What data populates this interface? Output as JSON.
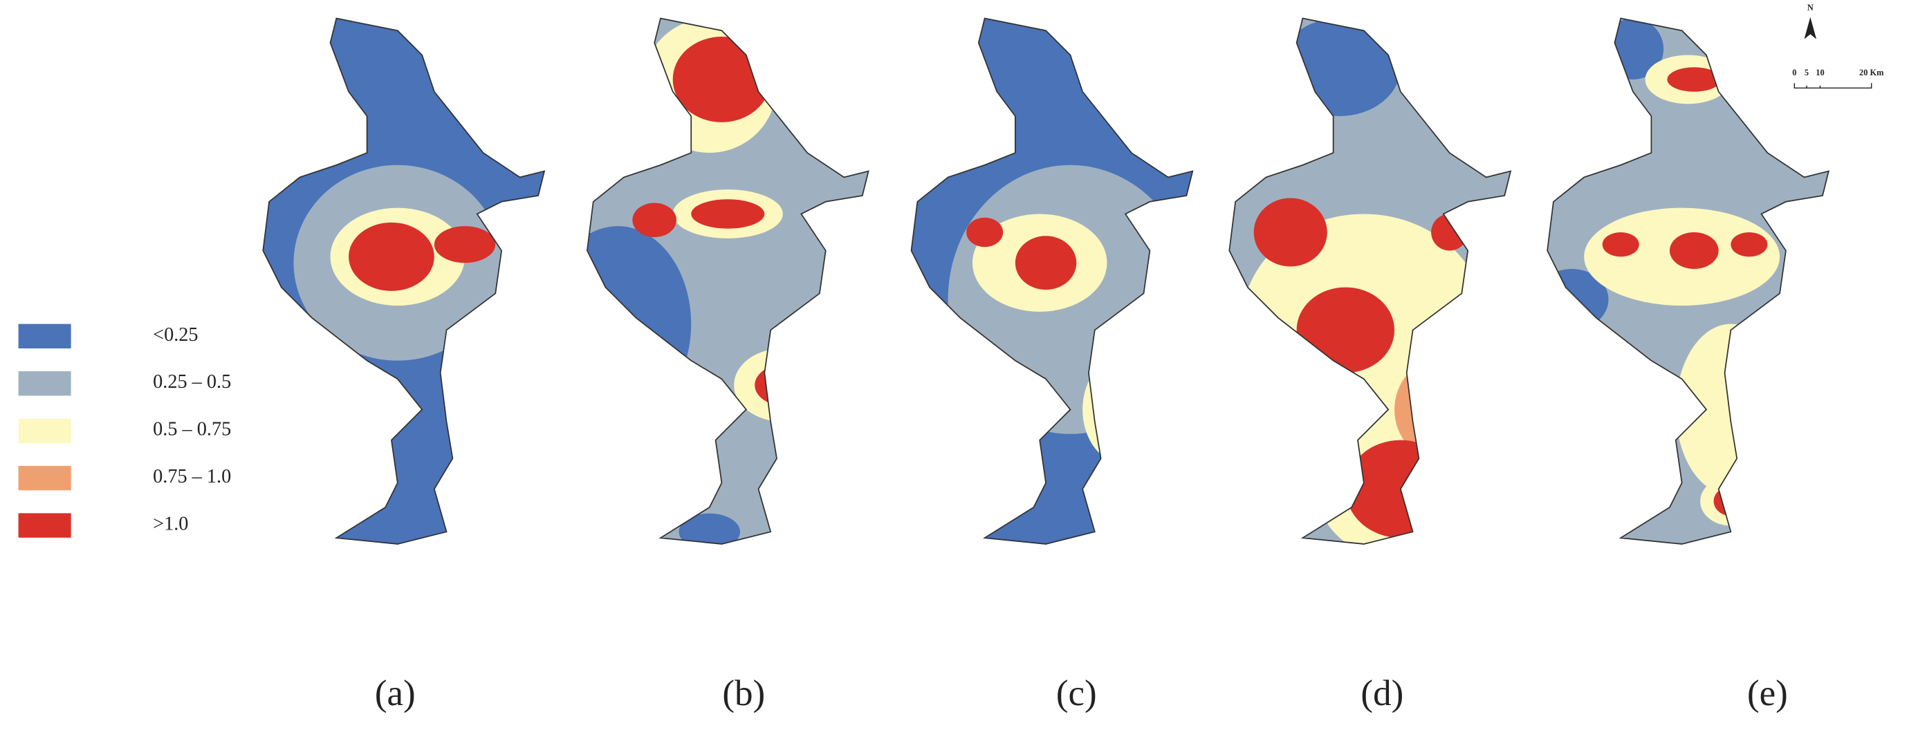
{
  "legend": {
    "items": [
      {
        "label": "<0.25",
        "color": "#4a73b8"
      },
      {
        "label": "0.25 – 0.5",
        "color": "#9fb1c0"
      },
      {
        "label": "0.5 – 0.75",
        "color": "#fcf8c0"
      },
      {
        "label": "0.75 – 1.0",
        "color": "#f0a070"
      },
      {
        "label": ">1.0",
        "color": "#d9302a"
      }
    ]
  },
  "panels": [
    {
      "label": "(a)"
    },
    {
      "label": "(b)"
    },
    {
      "label": "(c)"
    },
    {
      "label": "(d)"
    },
    {
      "label": "(e)"
    }
  ],
  "north_arrow": "N",
  "scale_bar": {
    "labels": [
      "0",
      "5",
      "10",
      "20 Km"
    ]
  }
}
